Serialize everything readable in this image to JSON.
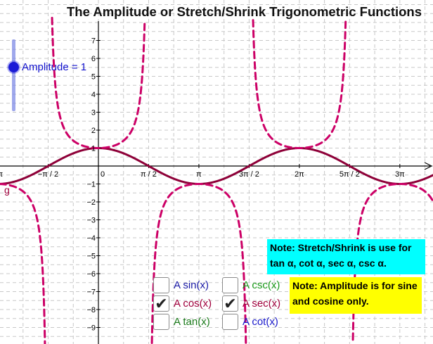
{
  "title": "The Amplitude or Stretch/Shrink Trigonometric Functions",
  "slider": {
    "label": "Amplitude = 1",
    "value": 1
  },
  "curve_label": "g",
  "notes": {
    "stretch": "Note: Stretch/Shrink is use for tan α, cot α, sec α, csc α.",
    "amplitude": "Note: Amplitude is for sine and cosine only."
  },
  "checkboxes": [
    {
      "id": "sin",
      "label": "A sin(x)",
      "checked": false,
      "color": "#1a1aa6"
    },
    {
      "id": "cos",
      "label": "A cos(x)",
      "checked": true,
      "color": "#a0003c"
    },
    {
      "id": "tan",
      "label": "A tan(x)",
      "checked": false,
      "color": "#1a7a1a"
    },
    {
      "id": "csc",
      "label": "A csc(x)",
      "checked": false,
      "color": "#1a9a1a"
    },
    {
      "id": "sec",
      "label": "A sec(x)",
      "checked": true,
      "color": "#a0003c"
    },
    {
      "id": "cot",
      "label": "A cot(x)",
      "checked": false,
      "color": "#1a1acc"
    }
  ],
  "check_mark": "✔",
  "colors": {
    "cos_curve": "#8e0038",
    "sec_curve": "#cc0066",
    "grid": "#c8c8c8",
    "axis": "#000000"
  },
  "chart_data": {
    "type": "line",
    "x_range_radians": [
      -3.42,
      11.1
    ],
    "y_range": [
      -9.6,
      7.6
    ],
    "x_tick_labels": [
      "−π",
      "−π / 2",
      "0",
      "π / 2",
      "π",
      "3π / 2",
      "2π",
      "5π / 2",
      "3π"
    ],
    "x_tick_values_pi": [
      -1,
      -0.5,
      0,
      0.5,
      1,
      1.5,
      2,
      2.5,
      3
    ],
    "y_tick_labels": [
      "7",
      "6",
      "5",
      "4",
      "3",
      "2",
      "1",
      "−1",
      "−2",
      "−3",
      "−4",
      "−5",
      "−6",
      "−7",
      "−8",
      "−9"
    ],
    "y_tick_values": [
      7,
      6,
      5,
      4,
      3,
      2,
      1,
      -1,
      -2,
      -3,
      -4,
      -5,
      -6,
      -7,
      -8,
      -9
    ],
    "grid": true,
    "series": [
      {
        "name": "A cos(x)",
        "function": "cos",
        "amplitude": 1,
        "style": "solid"
      },
      {
        "name": "A sec(x)",
        "function": "sec",
        "amplitude": 1,
        "style": "dashed"
      }
    ]
  }
}
